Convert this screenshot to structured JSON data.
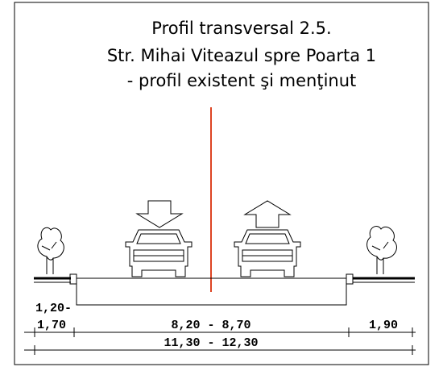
{
  "title": {
    "lines": [
      "Profil transversal 2.5.",
      "Str. Mihai Viteazul spre Poarta 1",
      "- profil existent şi menţinut"
    ]
  },
  "dimensions": {
    "left_sidewalk_min": "1,20-",
    "left_sidewalk_max": "1,70",
    "roadway": "8,20 - 8,70",
    "right_sidewalk": "1,90",
    "total": "11,30 - 12,30"
  }
}
